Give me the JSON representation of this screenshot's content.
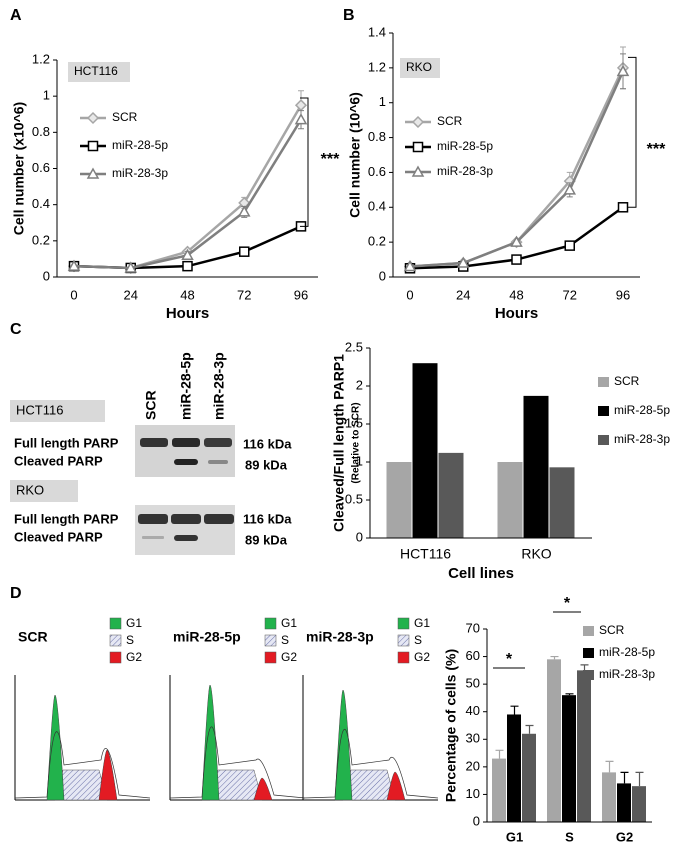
{
  "labels": {
    "a": "A",
    "b": "B",
    "c": "C",
    "d": "D"
  },
  "blot": {
    "lanes": [
      "SCR",
      "miR-28-5p",
      "miR-28-3p"
    ],
    "blocks": [
      {
        "cell_line": "HCT116",
        "bands": [
          {
            "name": "Full length PARP",
            "size": "116 kDa"
          },
          {
            "name": "Cleaved PARP",
            "size": "89 kDa"
          }
        ]
      },
      {
        "cell_line": "RKO",
        "bands": [
          {
            "name": "Full length PARP",
            "size": "116 kDa"
          },
          {
            "name": "Cleaved PARP",
            "size": "89 kDa"
          }
        ]
      }
    ]
  },
  "flow": {
    "panels": [
      "SCR",
      "miR-28-5p",
      "miR-28-3p"
    ],
    "legend": [
      "G1",
      "S",
      "G2"
    ]
  },
  "chart_data": [
    {
      "type": "line",
      "box_label": "HCT116",
      "x_label": "Hours",
      "y_label": "Cell number (x10^6)",
      "categories": [
        "0",
        "24",
        "48",
        "72",
        "96"
      ],
      "ylim": [
        0,
        1.2
      ],
      "yticks": [
        0,
        0.2,
        0.4,
        0.6,
        0.8,
        1,
        1.2
      ],
      "grid": false,
      "legend": "upper left",
      "annotation": "***",
      "series": [
        {
          "name": "SCR",
          "color": "#a6a6a6",
          "marker": "diamond",
          "values": [
            0.06,
            0.05,
            0.14,
            0.41,
            0.95
          ],
          "errors": [
            0,
            0,
            0,
            0.03,
            0.08
          ]
        },
        {
          "name": "miR-28-5p",
          "color": "#000000",
          "marker": "square",
          "values": [
            0.06,
            0.05,
            0.06,
            0.14,
            0.28
          ],
          "errors": [
            0,
            0,
            0,
            0,
            0
          ]
        },
        {
          "name": "miR-28-3p",
          "color": "#7f7f7f",
          "marker": "triangle",
          "values": [
            0.06,
            0.05,
            0.12,
            0.36,
            0.87
          ],
          "errors": [
            0,
            0,
            0.02,
            0.03,
            0.05
          ]
        }
      ]
    },
    {
      "type": "line",
      "box_label": "RKO",
      "x_label": "Hours",
      "y_label": "Cell number (10^6)",
      "categories": [
        "0",
        "24",
        "48",
        "72",
        "96"
      ],
      "ylim": [
        0,
        1.4
      ],
      "yticks": [
        0,
        0.2,
        0.4,
        0.6,
        0.8,
        1,
        1.2,
        1.4
      ],
      "grid": false,
      "legend": "upper left",
      "annotation": "***",
      "series": [
        {
          "name": "SCR",
          "color": "#a6a6a6",
          "marker": "diamond",
          "values": [
            0.06,
            0.08,
            0.2,
            0.55,
            1.2
          ],
          "errors": [
            0,
            0,
            0,
            0.05,
            0.12
          ]
        },
        {
          "name": "miR-28-5p",
          "color": "#000000",
          "marker": "square",
          "values": [
            0.05,
            0.06,
            0.1,
            0.18,
            0.4
          ],
          "errors": [
            0,
            0,
            0,
            0,
            0
          ]
        },
        {
          "name": "miR-28-3p",
          "color": "#7f7f7f",
          "marker": "triangle",
          "values": [
            0.06,
            0.08,
            0.2,
            0.5,
            1.18
          ],
          "errors": [
            0,
            0,
            0,
            0.04,
            0.1
          ]
        }
      ]
    },
    {
      "type": "bar",
      "x_label": "Cell lines",
      "y_label": "Cleaved/Full length PARP1",
      "y_sublabel": "(Relative to SCR)",
      "categories": [
        "HCT116",
        "RKO"
      ],
      "ylim": [
        0,
        2.5
      ],
      "yticks": [
        0,
        0.5,
        1,
        1.5,
        2,
        2.5
      ],
      "grid": false,
      "legend": "upper right",
      "series": [
        {
          "name": "SCR",
          "color": "#a6a6a6",
          "values": [
            1,
            1
          ]
        },
        {
          "name": "miR-28-5p",
          "color": "#000000",
          "values": [
            2.3,
            1.87
          ]
        },
        {
          "name": "miR-28-3p",
          "color": "#595959",
          "values": [
            1.12,
            0.93
          ]
        }
      ]
    },
    {
      "type": "bar",
      "y_label": "Percentage of cells  (%)",
      "categories": [
        "G1",
        "S",
        "G2"
      ],
      "ylim": [
        0,
        70
      ],
      "yticks": [
        0,
        10,
        20,
        30,
        40,
        50,
        60,
        70
      ],
      "grid": false,
      "legend": "upper right",
      "annotations": [
        "*",
        "*"
      ],
      "series": [
        {
          "name": "SCR",
          "color": "#a6a6a6",
          "values": [
            23,
            59,
            18
          ],
          "errors": [
            3,
            1,
            4
          ]
        },
        {
          "name": "miR-28-5p",
          "color": "#000000",
          "values": [
            39,
            46,
            14
          ],
          "errors": [
            3,
            0.5,
            4
          ]
        },
        {
          "name": "miR-28-3p",
          "color": "#595959",
          "values": [
            32,
            55,
            13
          ],
          "errors": [
            3,
            2,
            5
          ]
        }
      ]
    }
  ]
}
